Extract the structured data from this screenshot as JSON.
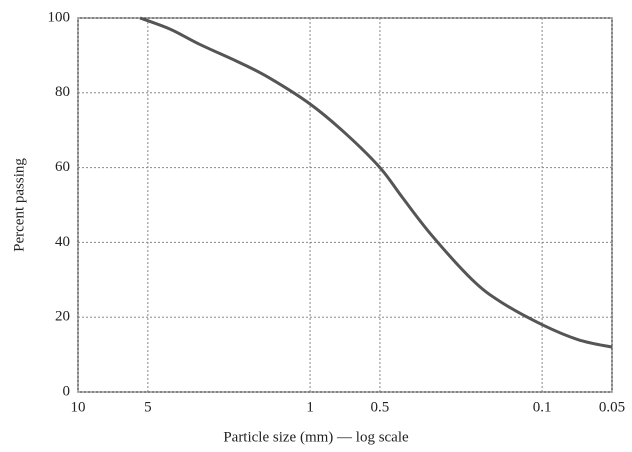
{
  "chart_data": {
    "type": "line",
    "x_label": "Particle size (mm) — log scale",
    "y_label": "Percent passing",
    "x": [
      5.4,
      4,
      3,
      2,
      1.5,
      1,
      0.7,
      0.5,
      0.4,
      0.3,
      0.2,
      0.15,
      0.1,
      0.07,
      0.05
    ],
    "values": [
      100,
      97,
      93,
      88,
      84,
      77,
      69,
      60,
      52,
      42,
      30,
      24,
      18,
      14,
      12
    ],
    "color": "#555555",
    "xlim": [
      10,
      0.05
    ],
    "xticks": [
      10,
      5,
      1,
      0.5,
      0.1,
      0.05
    ],
    "x_log": true,
    "ylim": [
      0,
      100
    ],
    "yticks": [
      0,
      20,
      40,
      60,
      80,
      100
    ],
    "grid": true
  }
}
